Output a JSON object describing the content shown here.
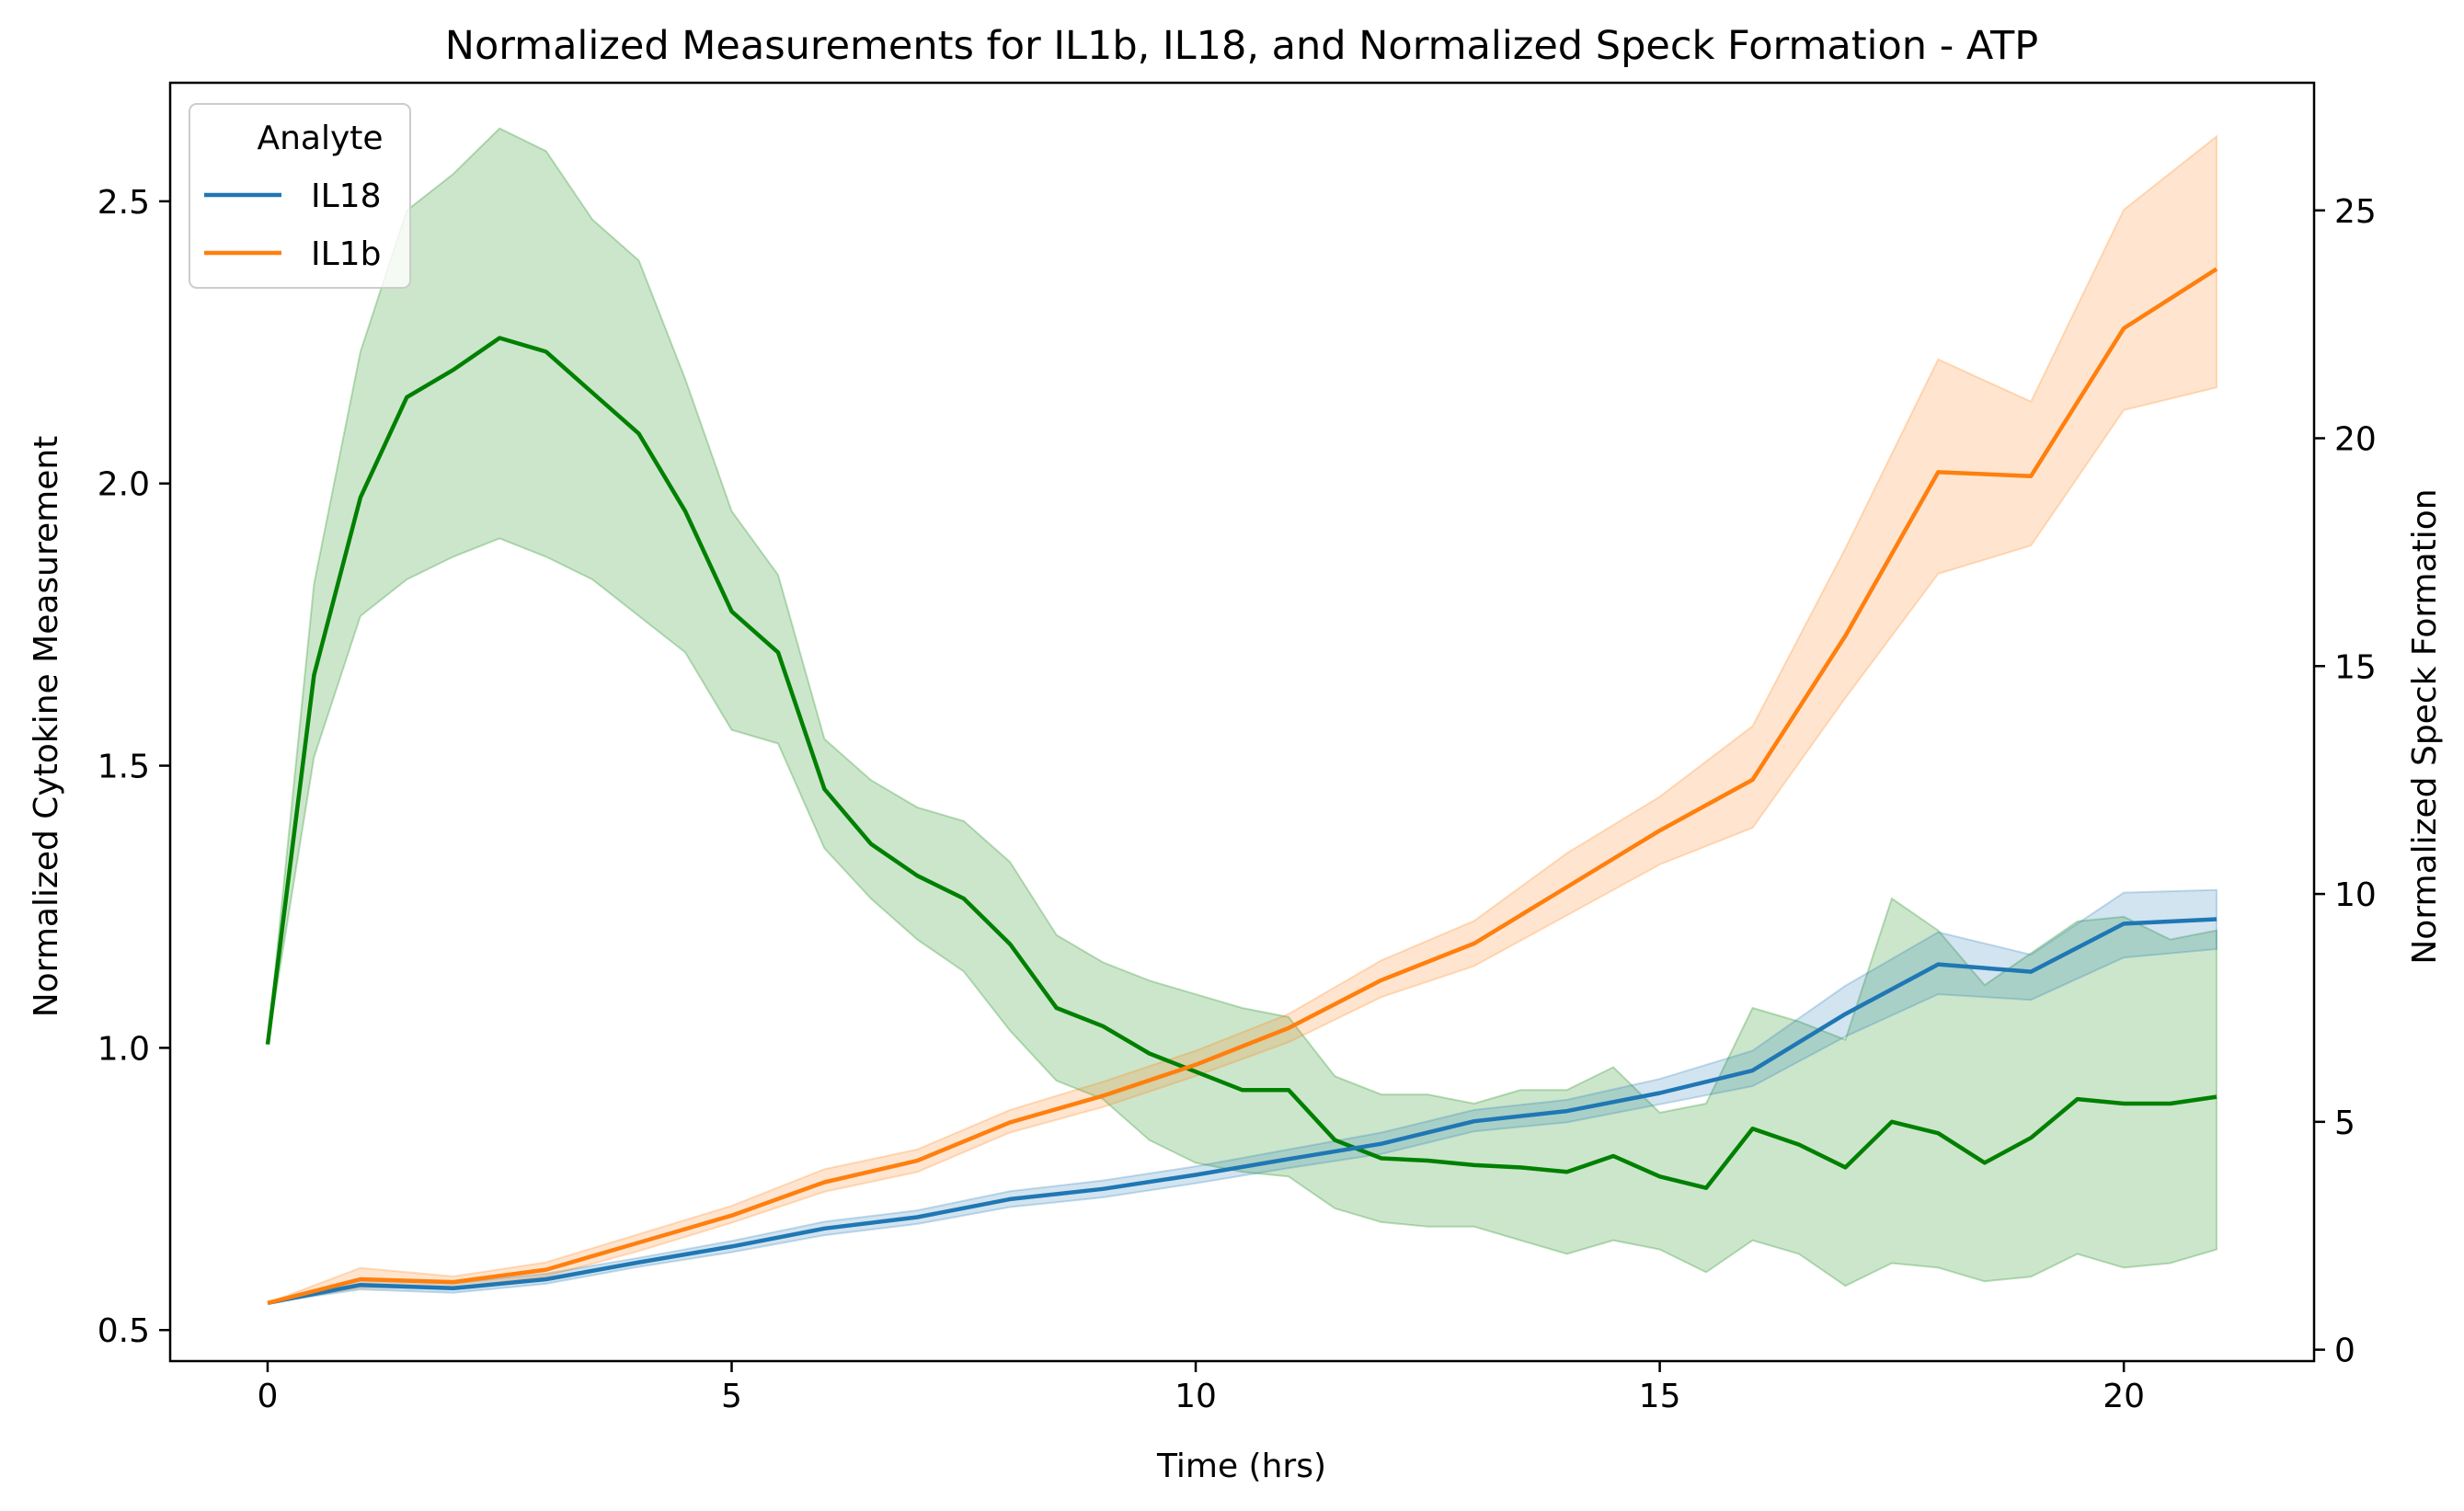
{
  "chart_data": {
    "type": "line",
    "title": "Normalized Measurements for IL1b, IL18, and Normalized Speck Formation - ATP",
    "xlabel": "Time (hrs)",
    "ylabel_left": "Normalized Cytokine Measurement",
    "ylabel_right": "Normalized Speck Formation",
    "xlim": [
      -1.05,
      22.05
    ],
    "ylim_left": [
      0.445,
      2.71
    ],
    "ylim_right": [
      -0.25,
      27.8
    ],
    "x_ticks": [
      0,
      5,
      10,
      15,
      20
    ],
    "y_left_ticks": [
      0.5,
      1.0,
      1.5,
      2.0,
      2.5
    ],
    "y_right_ticks": [
      0,
      5,
      10,
      15,
      20,
      25
    ],
    "legend": {
      "title": "Analyte",
      "placement": "top-left",
      "entries": [
        "IL18",
        "IL1b"
      ]
    },
    "grid": false,
    "series": [
      {
        "name": "IL18",
        "axis": "left",
        "color": "#1f77b4",
        "x": [
          0,
          1,
          2,
          3,
          4,
          5,
          6,
          7,
          8,
          9,
          10,
          11,
          12,
          13,
          14,
          15,
          16,
          17,
          18,
          19,
          20,
          21
        ],
        "y": [
          0.548,
          0.58,
          0.574,
          0.59,
          0.62,
          0.648,
          0.68,
          0.7,
          0.732,
          0.75,
          0.775,
          0.803,
          0.83,
          0.87,
          0.888,
          0.92,
          0.96,
          1.06,
          1.148,
          1.135,
          1.22,
          1.228
        ],
        "ci_low": [
          0.548,
          0.572,
          0.566,
          0.582,
          0.612,
          0.638,
          0.668,
          0.688,
          0.718,
          0.735,
          0.76,
          0.787,
          0.812,
          0.852,
          0.868,
          0.9,
          0.932,
          1.02,
          1.095,
          1.085,
          1.16,
          1.175
        ],
        "ci_high": [
          0.548,
          0.59,
          0.583,
          0.6,
          0.628,
          0.658,
          0.692,
          0.712,
          0.746,
          0.765,
          0.79,
          0.82,
          0.85,
          0.89,
          0.908,
          0.945,
          0.995,
          1.11,
          1.205,
          1.165,
          1.275,
          1.28
        ]
      },
      {
        "name": "IL1b",
        "axis": "left",
        "color": "#ff7f0e",
        "x": [
          0,
          1,
          2,
          3,
          4,
          5,
          6,
          7,
          8,
          9,
          10,
          11,
          12,
          13,
          14,
          15,
          16,
          17,
          18,
          19,
          20,
          21
        ],
        "y": [
          0.548,
          0.59,
          0.585,
          0.607,
          0.655,
          0.703,
          0.762,
          0.8,
          0.868,
          0.915,
          0.97,
          1.035,
          1.12,
          1.185,
          1.285,
          1.385,
          1.475,
          1.73,
          2.02,
          2.013,
          2.275,
          2.38
        ],
        "ci_low": [
          0.548,
          0.575,
          0.575,
          0.595,
          0.64,
          0.69,
          0.745,
          0.78,
          0.85,
          0.895,
          0.95,
          1.01,
          1.09,
          1.145,
          1.235,
          1.325,
          1.39,
          1.62,
          1.84,
          1.89,
          2.13,
          2.17
        ],
        "ci_high": [
          0.548,
          0.61,
          0.595,
          0.62,
          0.67,
          0.72,
          0.785,
          0.82,
          0.89,
          0.94,
          0.995,
          1.06,
          1.155,
          1.225,
          1.345,
          1.445,
          1.57,
          1.885,
          2.22,
          2.145,
          2.485,
          2.615
        ]
      },
      {
        "name": "Speck",
        "axis": "right",
        "color": "#008000",
        "x": [
          0,
          0.5,
          1,
          1.5,
          2,
          2.5,
          3,
          3.5,
          4,
          4.5,
          5,
          5.5,
          6,
          6.5,
          7,
          7.5,
          8,
          8.5,
          9,
          9.5,
          10,
          10.5,
          11,
          11.5,
          12,
          12.5,
          13,
          13.5,
          14,
          14.5,
          15,
          15.5,
          16,
          16.5,
          17,
          17.5,
          18,
          18.5,
          19,
          19.5,
          20,
          20.5,
          21
        ],
        "y": [
          6.7,
          14.8,
          18.7,
          20.9,
          21.5,
          22.2,
          21.9,
          21.0,
          20.1,
          18.4,
          16.2,
          15.3,
          12.3,
          11.1,
          10.4,
          9.9,
          8.9,
          7.5,
          7.1,
          6.5,
          6.1,
          5.7,
          5.7,
          4.6,
          4.2,
          4.15,
          4.05,
          4.0,
          3.9,
          4.25,
          3.8,
          3.55,
          4.85,
          4.5,
          4.0,
          5.0,
          4.75,
          4.1,
          4.65,
          5.5,
          5.4,
          5.4,
          5.55
        ],
        "ci_low": [
          6.7,
          13.0,
          16.1,
          16.9,
          17.4,
          17.8,
          17.4,
          16.9,
          16.1,
          15.3,
          13.6,
          13.3,
          11.0,
          9.9,
          9.0,
          8.3,
          7.0,
          5.9,
          5.5,
          4.6,
          4.1,
          3.9,
          3.8,
          3.1,
          2.8,
          2.7,
          2.7,
          2.4,
          2.1,
          2.4,
          2.2,
          1.7,
          2.4,
          2.1,
          1.4,
          1.9,
          1.8,
          1.5,
          1.6,
          2.1,
          1.8,
          1.9,
          2.2
        ],
        "ci_high": [
          6.7,
          16.8,
          21.9,
          25.0,
          25.8,
          26.8,
          26.3,
          24.8,
          23.9,
          21.3,
          18.4,
          17.0,
          13.4,
          12.5,
          11.9,
          11.6,
          10.7,
          9.1,
          8.5,
          8.1,
          7.8,
          7.5,
          7.3,
          6.0,
          5.6,
          5.6,
          5.4,
          5.7,
          5.7,
          6.2,
          5.2,
          5.4,
          7.5,
          7.2,
          6.8,
          9.9,
          9.2,
          8.0,
          8.7,
          9.4,
          9.5,
          9.0,
          9.2
        ]
      }
    ]
  }
}
